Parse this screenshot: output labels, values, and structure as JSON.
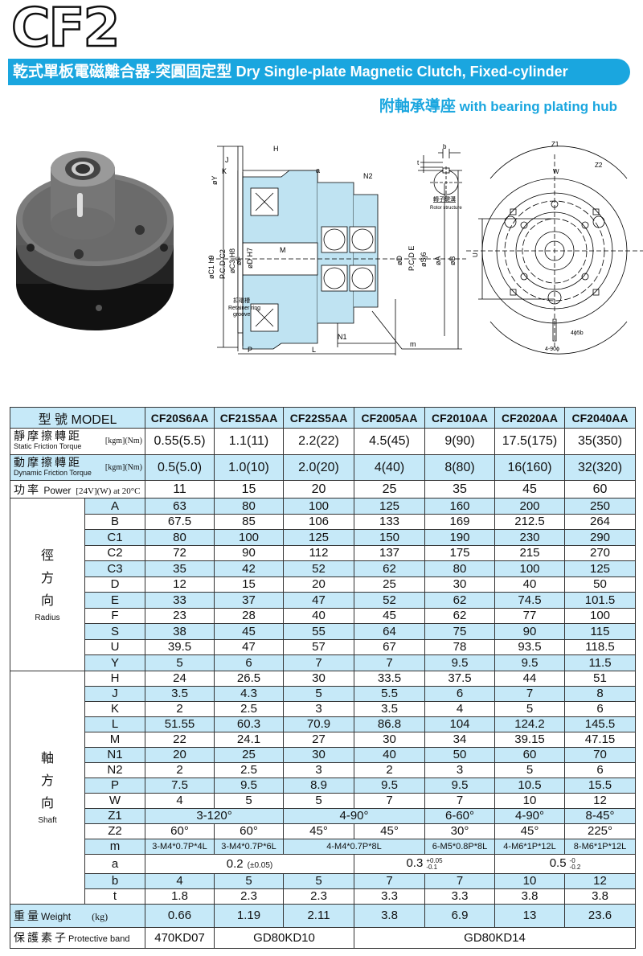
{
  "header": {
    "logo": "CF2",
    "title_zh": "乾式單板電磁離合器-突圓固定型",
    "title_en": "Dry Single-plate Magnetic Clutch, Fixed-cylinder",
    "subtitle_zh": "附軸承導座",
    "subtitle_en": "with bearing plating hub"
  },
  "drawing": {
    "section_labels": {
      "H": "H",
      "J": "J",
      "K": "K",
      "Y": "øY",
      "a": "a",
      "N2": "N2",
      "C1": "øC1 h9",
      "C2": "P.C.D C2",
      "C3": "øC3 H8",
      "F": "øF",
      "D_H7": "øD H7",
      "M": "M",
      "D": "øD",
      "E": "P.C.D E",
      "S": "øSj6",
      "A": "øA",
      "B": "øB",
      "retainer_zh": "扣環槽",
      "retainer_en1": "Retainer ring",
      "retainer_en2": "groove",
      "N1": "N1",
      "m": "m",
      "P": "P",
      "L": "L"
    },
    "rotor_labels": {
      "b": "b",
      "t": "t",
      "caption_zh": "轉子鍵溝",
      "caption_en": "Rotor structure"
    },
    "front_labels": {
      "Z1": "Z1",
      "Z2": "Z2",
      "W": "W",
      "U": "U",
      "holes1": "4ϕ5b",
      "holes2": "4-90ϕ"
    }
  },
  "table": {
    "model_label": "型 號 MODEL",
    "models": [
      "CF20S6AA",
      "CF21S5AA",
      "CF22S5AA",
      "CF2005AA",
      "CF2010AA",
      "CF2020AA",
      "CF2040AA"
    ],
    "top_rows": [
      {
        "zh": "靜摩擦轉距",
        "en": "Static Friction Torque",
        "unit": "[kgm](Nm)",
        "values": [
          "0.55(5.5)",
          "1.1(11)",
          "2.2(22)",
          "4.5(45)",
          "9(90)",
          "17.5(175)",
          "35(350)"
        ]
      },
      {
        "zh": "動摩擦轉距",
        "en": "Dynamic Friction Torque",
        "unit": "[kgm](Nm)",
        "values": [
          "0.5(5.0)",
          "1.0(10)",
          "2.0(20)",
          "4(40)",
          "8(80)",
          "16(160)",
          "32(320)"
        ]
      },
      {
        "zh": "功率",
        "en": "Power",
        "unit": "[24V](W) at 20°C",
        "values": [
          "11",
          "15",
          "20",
          "25",
          "35",
          "45",
          "60"
        ]
      }
    ],
    "radius_group": {
      "zh": [
        "徑",
        "方",
        "向"
      ],
      "en": "Radius"
    },
    "radius_rows": [
      {
        "k": "A",
        "values": [
          "63",
          "80",
          "100",
          "125",
          "160",
          "200",
          "250"
        ]
      },
      {
        "k": "B",
        "values": [
          "67.5",
          "85",
          "106",
          "133",
          "169",
          "212.5",
          "264"
        ]
      },
      {
        "k": "C1",
        "values": [
          "80",
          "100",
          "125",
          "150",
          "190",
          "230",
          "290"
        ]
      },
      {
        "k": "C2",
        "values": [
          "72",
          "90",
          "112",
          "137",
          "175",
          "215",
          "270"
        ]
      },
      {
        "k": "C3",
        "values": [
          "35",
          "42",
          "52",
          "62",
          "80",
          "100",
          "125"
        ]
      },
      {
        "k": "D",
        "values": [
          "12",
          "15",
          "20",
          "25",
          "30",
          "40",
          "50"
        ]
      },
      {
        "k": "E",
        "values": [
          "33",
          "37",
          "47",
          "52",
          "62",
          "74.5",
          "101.5"
        ]
      },
      {
        "k": "F",
        "values": [
          "23",
          "28",
          "40",
          "45",
          "62",
          "77",
          "100"
        ]
      },
      {
        "k": "S",
        "values": [
          "38",
          "45",
          "55",
          "64",
          "75",
          "90",
          "115"
        ]
      },
      {
        "k": "U",
        "values": [
          "39.5",
          "47",
          "57",
          "67",
          "78",
          "93.5",
          "118.5"
        ]
      },
      {
        "k": "Y",
        "values": [
          "5",
          "6",
          "7",
          "7",
          "9.5",
          "9.5",
          "11.5"
        ]
      }
    ],
    "shaft_group": {
      "zh": [
        "軸",
        "方",
        "向"
      ],
      "en": "Shaft"
    },
    "shaft_rows": [
      {
        "k": "H",
        "cells": [
          {
            "v": "24"
          },
          {
            "v": "26.5"
          },
          {
            "v": "30"
          },
          {
            "v": "33.5"
          },
          {
            "v": "37.5"
          },
          {
            "v": "44"
          },
          {
            "v": "51"
          }
        ]
      },
      {
        "k": "J",
        "cells": [
          {
            "v": "3.5"
          },
          {
            "v": "4.3"
          },
          {
            "v": "5"
          },
          {
            "v": "5.5"
          },
          {
            "v": "6"
          },
          {
            "v": "7"
          },
          {
            "v": "8"
          }
        ]
      },
      {
        "k": "K",
        "cells": [
          {
            "v": "2"
          },
          {
            "v": "2.5"
          },
          {
            "v": "3"
          },
          {
            "v": "3.5"
          },
          {
            "v": "4"
          },
          {
            "v": "5"
          },
          {
            "v": "6"
          }
        ]
      },
      {
        "k": "L",
        "cells": [
          {
            "v": "51.55"
          },
          {
            "v": "60.3"
          },
          {
            "v": "70.9"
          },
          {
            "v": "86.8"
          },
          {
            "v": "104"
          },
          {
            "v": "124.2"
          },
          {
            "v": "145.5"
          }
        ]
      },
      {
        "k": "M",
        "cells": [
          {
            "v": "22"
          },
          {
            "v": "24.1"
          },
          {
            "v": "27"
          },
          {
            "v": "30"
          },
          {
            "v": "34"
          },
          {
            "v": "39.15"
          },
          {
            "v": "47.15"
          }
        ]
      },
      {
        "k": "N1",
        "cells": [
          {
            "v": "20"
          },
          {
            "v": "25"
          },
          {
            "v": "30"
          },
          {
            "v": "40"
          },
          {
            "v": "50"
          },
          {
            "v": "60"
          },
          {
            "v": "70"
          }
        ]
      },
      {
        "k": "N2",
        "cells": [
          {
            "v": "2"
          },
          {
            "v": "2.5"
          },
          {
            "v": "3"
          },
          {
            "v": "2"
          },
          {
            "v": "3"
          },
          {
            "v": "5"
          },
          {
            "v": "6"
          }
        ]
      },
      {
        "k": "P",
        "cells": [
          {
            "v": "7.5"
          },
          {
            "v": "9.5"
          },
          {
            "v": "8.9"
          },
          {
            "v": "9.5"
          },
          {
            "v": "9.5"
          },
          {
            "v": "10.5"
          },
          {
            "v": "15.5"
          }
        ]
      },
      {
        "k": "W",
        "cells": [
          {
            "v": "4"
          },
          {
            "v": "5"
          },
          {
            "v": "5"
          },
          {
            "v": "7"
          },
          {
            "v": "7"
          },
          {
            "v": "10"
          },
          {
            "v": "12"
          }
        ]
      },
      {
        "k": "Z1",
        "cells": [
          {
            "v": "3-120°",
            "span": 2
          },
          {
            "v": "4-90°",
            "span": 2
          },
          {
            "v": "6-60°"
          },
          {
            "v": "4-90°"
          },
          {
            "v": "8-45°"
          }
        ]
      },
      {
        "k": "Z2",
        "cells": [
          {
            "v": "60°"
          },
          {
            "v": "60°"
          },
          {
            "v": "45°"
          },
          {
            "v": "45°"
          },
          {
            "v": "30°"
          },
          {
            "v": "45°"
          },
          {
            "v": "225°"
          }
        ]
      },
      {
        "k": "m",
        "small": true,
        "cells": [
          {
            "v": "3-M4*0.7P*4L"
          },
          {
            "v": "3-M4*0.7P*6L"
          },
          {
            "v": "4-M4*0.7P*8L",
            "span": 2
          },
          {
            "v": "6-M5*0.8P*8L"
          },
          {
            "v": "4-M6*1P*12L"
          },
          {
            "v": "8-M6*1P*12L"
          }
        ]
      },
      {
        "k": "a",
        "cells": [
          {
            "v": "0.2",
            "tol": "(±0.05)",
            "span": 3
          },
          {
            "v": "0.3",
            "up": "+0.05",
            "lo": "-0.1",
            "span": 2
          },
          {
            "v": "0.5",
            "up": "-0",
            "lo": "-0.2",
            "span": 2
          }
        ]
      },
      {
        "k": "b",
        "cells": [
          {
            "v": "4"
          },
          {
            "v": "5"
          },
          {
            "v": "5"
          },
          {
            "v": "7"
          },
          {
            "v": "7"
          },
          {
            "v": "10"
          },
          {
            "v": "12"
          }
        ]
      },
      {
        "k": "t",
        "cells": [
          {
            "v": "1.8"
          },
          {
            "v": "2.3"
          },
          {
            "v": "2.3"
          },
          {
            "v": "3.3"
          },
          {
            "v": "3.3"
          },
          {
            "v": "3.8"
          },
          {
            "v": "3.8"
          }
        ]
      }
    ],
    "weight": {
      "zh": "重量",
      "en": "Weight",
      "unit": "(kg)",
      "values": [
        "0.66",
        "1.19",
        "2.11",
        "3.8",
        "6.9",
        "13",
        "23.6"
      ]
    },
    "band": {
      "zh": "保護素子",
      "en": "Protective band",
      "cells": [
        {
          "v": "470KD07"
        },
        {
          "v": "GD80KD10",
          "span": 2
        },
        {
          "v": "GD80KD14",
          "span": 4
        }
      ]
    }
  },
  "colors": {
    "brand_blue": "#1aa6df",
    "row_blue": "#c6e9f8",
    "section_fill": "#bfe3f2"
  }
}
